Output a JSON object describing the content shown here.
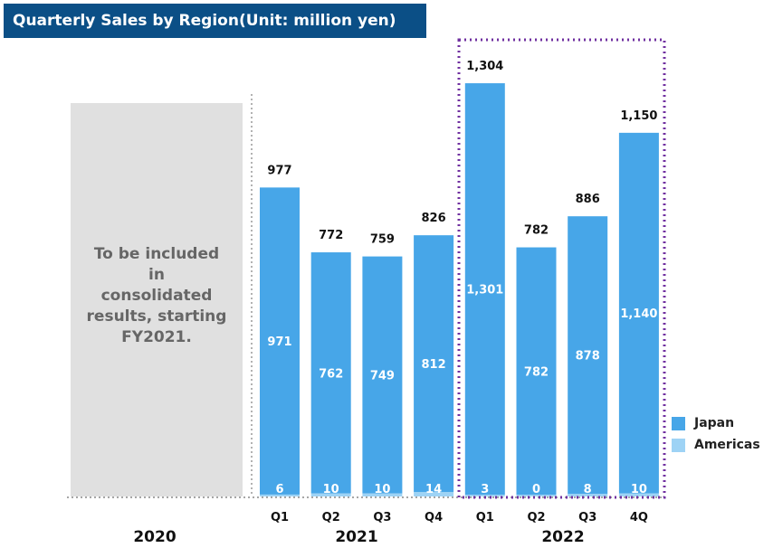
{
  "title": "Quarterly Sales by Region(Unit: million yen)",
  "placeholder_text": "To be included\nin\nconsolidated\nresults, starting\nFY2021.",
  "years": [
    "2020",
    "2021",
    "2022"
  ],
  "colors": {
    "japan": "#47a6e8",
    "americas": "#9ed3f5",
    "title_bg": "#0b4f86",
    "highlight": "#7030a0"
  },
  "chart_data": {
    "type": "bar",
    "stacked": true,
    "title": "Quarterly Sales by Region(Unit: million yen)",
    "categories": [
      "Q1",
      "Q2",
      "Q3",
      "Q4",
      "Q1",
      "Q2",
      "Q3",
      "4Q"
    ],
    "years": [
      "2021",
      "2021",
      "2021",
      "2021",
      "2022",
      "2022",
      "2022",
      "2022"
    ],
    "series": [
      {
        "name": "Japan",
        "values": [
          971,
          762,
          749,
          812,
          1301,
          782,
          878,
          1140
        ]
      },
      {
        "name": "Americas",
        "values": [
          6,
          10,
          10,
          14,
          3,
          0,
          8,
          10
        ]
      }
    ],
    "totals": [
      977,
      772,
      759,
      826,
      1304,
      782,
      886,
      1150
    ],
    "total_labels": [
      "977",
      "772",
      "759",
      "826",
      "1,304",
      "782",
      "886",
      "1,150"
    ],
    "japan_labels": [
      "971",
      "762",
      "749",
      "812",
      "1,301",
      "782",
      "878",
      "1,140"
    ],
    "americas_labels": [
      "6",
      "10",
      "10",
      "14",
      "3",
      "0",
      "8",
      "10"
    ],
    "ylim": [
      0,
      1304
    ],
    "legend": [
      "Japan",
      "Americas"
    ],
    "legend_position": "right"
  }
}
